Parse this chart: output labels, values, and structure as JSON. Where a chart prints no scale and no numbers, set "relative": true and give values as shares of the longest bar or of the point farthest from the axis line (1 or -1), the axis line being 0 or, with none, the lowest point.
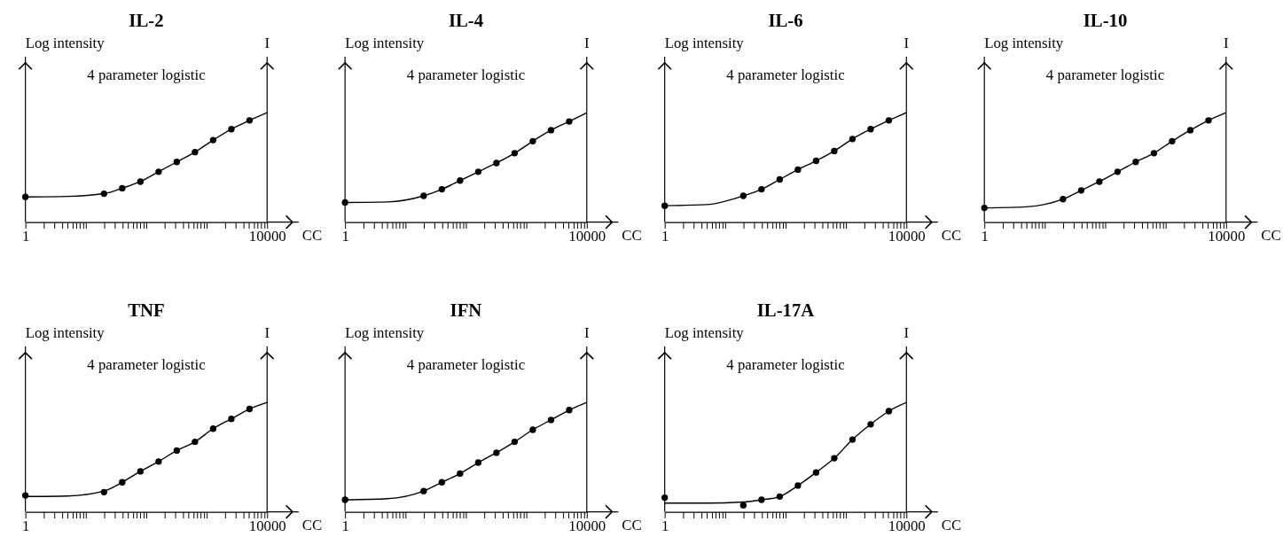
{
  "chart_data": [
    {
      "type": "scatter",
      "title": "IL-2",
      "ylabel": "Log intensity",
      "y2label": "I",
      "xlabel": "CC",
      "annotations": [
        "4 parameter logistic"
      ],
      "relative": true,
      "log": "x",
      "marker": "circle",
      "xlim": [
        1,
        10000
      ],
      "xticks": [
        1,
        {
          "value": 2,
          "label": null
        },
        {
          "value": 3,
          "label": null
        },
        {
          "value": 4,
          "label": null
        },
        {
          "value": 5,
          "label": null
        },
        {
          "value": 6,
          "label": null
        },
        {
          "value": 7,
          "label": null
        },
        {
          "value": 8,
          "label": null
        },
        {
          "value": 9,
          "label": null
        },
        {
          "value": 10,
          "label": null
        },
        {
          "value": 20,
          "label": null
        },
        {
          "value": 30,
          "label": null
        },
        {
          "value": 40,
          "label": null
        },
        {
          "value": 50,
          "label": null
        },
        {
          "value": 60,
          "label": null
        },
        {
          "value": 70,
          "label": null
        },
        {
          "value": 80,
          "label": null
        },
        {
          "value": 90,
          "label": null
        },
        {
          "value": 100,
          "label": null
        },
        {
          "value": 200,
          "label": null
        },
        {
          "value": 300,
          "label": null
        },
        {
          "value": 400,
          "label": null
        },
        {
          "value": 500,
          "label": null
        },
        {
          "value": 600,
          "label": null
        },
        {
          "value": 700,
          "label": null
        },
        {
          "value": 800,
          "label": null
        },
        {
          "value": 900,
          "label": null
        },
        {
          "value": 1000,
          "label": null
        },
        {
          "value": 2000,
          "label": null
        },
        {
          "value": 3000,
          "label": null
        },
        {
          "value": 4000,
          "label": null
        },
        {
          "value": 5000,
          "label": null
        },
        {
          "value": 6000,
          "label": null
        },
        {
          "value": 7000,
          "label": null
        },
        {
          "value": 8000,
          "label": null
        },
        {
          "value": 9000,
          "label": null
        },
        10000
      ],
      "series": [
        {
          "type": "scatter",
          "color": "#000000",
          "x": [
            1,
            20,
            40,
            80,
            160,
            320,
            640,
            1280,
            2560,
            5120
          ],
          "values": [
            0.23,
            0.26,
            0.31,
            0.37,
            0.46,
            0.55,
            0.64,
            0.75,
            0.85,
            0.93
          ]
        },
        {
          "type": "line",
          "marker": "none",
          "color": "#000000",
          "x": [
            1,
            5,
            20,
            40,
            80,
            160,
            320,
            640,
            1280,
            2560,
            5120,
            10000
          ],
          "values": [
            0.23,
            0.235,
            0.26,
            0.31,
            0.37,
            0.46,
            0.55,
            0.64,
            0.75,
            0.85,
            0.93,
            1
          ]
        }
      ]
    },
    {
      "type": "scatter",
      "title": "IL-4",
      "ylabel": "Log intensity",
      "y2label": "I",
      "xlabel": "CC",
      "annotations": [
        "4 parameter logistic"
      ],
      "relative": true,
      "log": "x",
      "marker": "circle",
      "xlim": [
        1,
        10000
      ],
      "xticks": [
        1,
        {
          "value": 2,
          "label": null
        },
        {
          "value": 3,
          "label": null
        },
        {
          "value": 4,
          "label": null
        },
        {
          "value": 5,
          "label": null
        },
        {
          "value": 6,
          "label": null
        },
        {
          "value": 7,
          "label": null
        },
        {
          "value": 8,
          "label": null
        },
        {
          "value": 9,
          "label": null
        },
        {
          "value": 10,
          "label": null
        },
        {
          "value": 20,
          "label": null
        },
        {
          "value": 30,
          "label": null
        },
        {
          "value": 40,
          "label": null
        },
        {
          "value": 50,
          "label": null
        },
        {
          "value": 60,
          "label": null
        },
        {
          "value": 70,
          "label": null
        },
        {
          "value": 80,
          "label": null
        },
        {
          "value": 90,
          "label": null
        },
        {
          "value": 100,
          "label": null
        },
        {
          "value": 200,
          "label": null
        },
        {
          "value": 300,
          "label": null
        },
        {
          "value": 400,
          "label": null
        },
        {
          "value": 500,
          "label": null
        },
        {
          "value": 600,
          "label": null
        },
        {
          "value": 700,
          "label": null
        },
        {
          "value": 800,
          "label": null
        },
        {
          "value": 900,
          "label": null
        },
        {
          "value": 1000,
          "label": null
        },
        {
          "value": 2000,
          "label": null
        },
        {
          "value": 3000,
          "label": null
        },
        {
          "value": 4000,
          "label": null
        },
        {
          "value": 5000,
          "label": null
        },
        {
          "value": 6000,
          "label": null
        },
        {
          "value": 7000,
          "label": null
        },
        {
          "value": 8000,
          "label": null
        },
        {
          "value": 9000,
          "label": null
        },
        10000
      ],
      "series": [
        {
          "type": "scatter",
          "color": "#000000",
          "x": [
            1,
            20,
            40,
            80,
            160,
            320,
            640,
            1280,
            2560,
            5120
          ],
          "values": [
            0.18,
            0.24,
            0.3,
            0.38,
            0.46,
            0.54,
            0.63,
            0.74,
            0.84,
            0.92
          ]
        },
        {
          "type": "line",
          "marker": "none",
          "color": "#000000",
          "x": [
            1,
            5,
            20,
            40,
            80,
            160,
            320,
            640,
            1280,
            2560,
            5120,
            10000
          ],
          "values": [
            0.18,
            0.185,
            0.24,
            0.3,
            0.38,
            0.46,
            0.54,
            0.63,
            0.74,
            0.84,
            0.92,
            1
          ]
        }
      ]
    },
    {
      "type": "scatter",
      "title": "IL-6",
      "ylabel": "Log intensity",
      "y2label": "I",
      "xlabel": "CC",
      "annotations": [
        "4 parameter logistic"
      ],
      "relative": true,
      "log": "x",
      "marker": "circle",
      "xlim": [
        1,
        10000
      ],
      "xticks": [
        1,
        {
          "value": 2,
          "label": null
        },
        {
          "value": 3,
          "label": null
        },
        {
          "value": 4,
          "label": null
        },
        {
          "value": 5,
          "label": null
        },
        {
          "value": 6,
          "label": null
        },
        {
          "value": 7,
          "label": null
        },
        {
          "value": 8,
          "label": null
        },
        {
          "value": 9,
          "label": null
        },
        {
          "value": 10,
          "label": null
        },
        {
          "value": 20,
          "label": null
        },
        {
          "value": 30,
          "label": null
        },
        {
          "value": 40,
          "label": null
        },
        {
          "value": 50,
          "label": null
        },
        {
          "value": 60,
          "label": null
        },
        {
          "value": 70,
          "label": null
        },
        {
          "value": 80,
          "label": null
        },
        {
          "value": 90,
          "label": null
        },
        {
          "value": 100,
          "label": null
        },
        {
          "value": 200,
          "label": null
        },
        {
          "value": 300,
          "label": null
        },
        {
          "value": 400,
          "label": null
        },
        {
          "value": 500,
          "label": null
        },
        {
          "value": 600,
          "label": null
        },
        {
          "value": 700,
          "label": null
        },
        {
          "value": 800,
          "label": null
        },
        {
          "value": 900,
          "label": null
        },
        {
          "value": 1000,
          "label": null
        },
        {
          "value": 2000,
          "label": null
        },
        {
          "value": 3000,
          "label": null
        },
        {
          "value": 4000,
          "label": null
        },
        {
          "value": 5000,
          "label": null
        },
        {
          "value": 6000,
          "label": null
        },
        {
          "value": 7000,
          "label": null
        },
        {
          "value": 8000,
          "label": null
        },
        {
          "value": 9000,
          "label": null
        },
        10000
      ],
      "series": [
        {
          "type": "scatter",
          "color": "#000000",
          "x": [
            1,
            20,
            40,
            80,
            160,
            320,
            640,
            1280,
            2560,
            5120
          ],
          "values": [
            0.15,
            0.24,
            0.3,
            0.39,
            0.48,
            0.56,
            0.65,
            0.76,
            0.85,
            0.93
          ]
        },
        {
          "type": "line",
          "marker": "none",
          "color": "#000000",
          "x": [
            1,
            5,
            20,
            40,
            80,
            160,
            320,
            640,
            1280,
            2560,
            5120,
            10000
          ],
          "values": [
            0.15,
            0.16,
            0.24,
            0.3,
            0.39,
            0.48,
            0.56,
            0.65,
            0.76,
            0.85,
            0.93,
            1
          ]
        }
      ]
    },
    {
      "type": "scatter",
      "title": "IL-10",
      "ylabel": "Log intensity",
      "y2label": "I",
      "xlabel": "CC",
      "annotations": [
        "4 parameter logistic"
      ],
      "relative": true,
      "log": "x",
      "marker": "circle",
      "xlim": [
        1,
        10000
      ],
      "xticks": [
        1,
        {
          "value": 2,
          "label": null
        },
        {
          "value": 3,
          "label": null
        },
        {
          "value": 4,
          "label": null
        },
        {
          "value": 5,
          "label": null
        },
        {
          "value": 6,
          "label": null
        },
        {
          "value": 7,
          "label": null
        },
        {
          "value": 8,
          "label": null
        },
        {
          "value": 9,
          "label": null
        },
        {
          "value": 10,
          "label": null
        },
        {
          "value": 20,
          "label": null
        },
        {
          "value": 30,
          "label": null
        },
        {
          "value": 40,
          "label": null
        },
        {
          "value": 50,
          "label": null
        },
        {
          "value": 60,
          "label": null
        },
        {
          "value": 70,
          "label": null
        },
        {
          "value": 80,
          "label": null
        },
        {
          "value": 90,
          "label": null
        },
        {
          "value": 100,
          "label": null
        },
        {
          "value": 200,
          "label": null
        },
        {
          "value": 300,
          "label": null
        },
        {
          "value": 400,
          "label": null
        },
        {
          "value": 500,
          "label": null
        },
        {
          "value": 600,
          "label": null
        },
        {
          "value": 700,
          "label": null
        },
        {
          "value": 800,
          "label": null
        },
        {
          "value": 900,
          "label": null
        },
        {
          "value": 1000,
          "label": null
        },
        {
          "value": 2000,
          "label": null
        },
        {
          "value": 3000,
          "label": null
        },
        {
          "value": 4000,
          "label": null
        },
        {
          "value": 5000,
          "label": null
        },
        {
          "value": 6000,
          "label": null
        },
        {
          "value": 7000,
          "label": null
        },
        {
          "value": 8000,
          "label": null
        },
        {
          "value": 9000,
          "label": null
        },
        10000
      ],
      "series": [
        {
          "type": "scatter",
          "color": "#000000",
          "x": [
            1,
            20,
            40,
            80,
            160,
            320,
            640,
            1280,
            2560,
            5120
          ],
          "values": [
            0.13,
            0.21,
            0.29,
            0.37,
            0.46,
            0.55,
            0.63,
            0.74,
            0.84,
            0.93
          ]
        },
        {
          "type": "line",
          "marker": "none",
          "color": "#000000",
          "x": [
            1,
            5,
            20,
            40,
            80,
            160,
            320,
            640,
            1280,
            2560,
            5120,
            10000
          ],
          "values": [
            0.13,
            0.14,
            0.21,
            0.29,
            0.37,
            0.46,
            0.55,
            0.63,
            0.74,
            0.84,
            0.93,
            1
          ]
        }
      ]
    },
    {
      "type": "scatter",
      "title": "TNF",
      "ylabel": "Log intensity",
      "y2label": "I",
      "xlabel": "CC",
      "annotations": [
        "4 parameter logistic"
      ],
      "relative": true,
      "log": "x",
      "marker": "circle",
      "xlim": [
        1,
        10000
      ],
      "xticks": [
        1,
        {
          "value": 2,
          "label": null
        },
        {
          "value": 3,
          "label": null
        },
        {
          "value": 4,
          "label": null
        },
        {
          "value": 5,
          "label": null
        },
        {
          "value": 6,
          "label": null
        },
        {
          "value": 7,
          "label": null
        },
        {
          "value": 8,
          "label": null
        },
        {
          "value": 9,
          "label": null
        },
        {
          "value": 10,
          "label": null
        },
        {
          "value": 20,
          "label": null
        },
        {
          "value": 30,
          "label": null
        },
        {
          "value": 40,
          "label": null
        },
        {
          "value": 50,
          "label": null
        },
        {
          "value": 60,
          "label": null
        },
        {
          "value": 70,
          "label": null
        },
        {
          "value": 80,
          "label": null
        },
        {
          "value": 90,
          "label": null
        },
        {
          "value": 100,
          "label": null
        },
        {
          "value": 200,
          "label": null
        },
        {
          "value": 300,
          "label": null
        },
        {
          "value": 400,
          "label": null
        },
        {
          "value": 500,
          "label": null
        },
        {
          "value": 600,
          "label": null
        },
        {
          "value": 700,
          "label": null
        },
        {
          "value": 800,
          "label": null
        },
        {
          "value": 900,
          "label": null
        },
        {
          "value": 1000,
          "label": null
        },
        {
          "value": 2000,
          "label": null
        },
        {
          "value": 3000,
          "label": null
        },
        {
          "value": 4000,
          "label": null
        },
        {
          "value": 5000,
          "label": null
        },
        {
          "value": 6000,
          "label": null
        },
        {
          "value": 7000,
          "label": null
        },
        {
          "value": 8000,
          "label": null
        },
        {
          "value": 9000,
          "label": null
        },
        10000
      ],
      "series": [
        {
          "type": "scatter",
          "color": "#000000",
          "x": [
            1,
            20,
            40,
            80,
            160,
            320,
            640,
            1280,
            2560,
            5120
          ],
          "values": [
            0.15,
            0.18,
            0.27,
            0.37,
            0.46,
            0.56,
            0.64,
            0.76,
            0.85,
            0.94
          ]
        },
        {
          "type": "line",
          "marker": "none",
          "color": "#000000",
          "x": [
            1,
            5,
            20,
            40,
            80,
            160,
            320,
            640,
            1280,
            2560,
            5120,
            10000
          ],
          "values": [
            0.14,
            0.145,
            0.19,
            0.27,
            0.37,
            0.46,
            0.56,
            0.64,
            0.76,
            0.85,
            0.94,
            1
          ]
        }
      ]
    },
    {
      "type": "scatter",
      "title": "IFN",
      "ylabel": "Log intensity",
      "y2label": "I",
      "xlabel": "CC",
      "annotations": [
        "4 parameter logistic"
      ],
      "relative": true,
      "log": "x",
      "marker": "circle",
      "xlim": [
        1,
        10000
      ],
      "xticks": [
        1,
        {
          "value": 2,
          "label": null
        },
        {
          "value": 3,
          "label": null
        },
        {
          "value": 4,
          "label": null
        },
        {
          "value": 5,
          "label": null
        },
        {
          "value": 6,
          "label": null
        },
        {
          "value": 7,
          "label": null
        },
        {
          "value": 8,
          "label": null
        },
        {
          "value": 9,
          "label": null
        },
        {
          "value": 10,
          "label": null
        },
        {
          "value": 20,
          "label": null
        },
        {
          "value": 30,
          "label": null
        },
        {
          "value": 40,
          "label": null
        },
        {
          "value": 50,
          "label": null
        },
        {
          "value": 60,
          "label": null
        },
        {
          "value": 70,
          "label": null
        },
        {
          "value": 80,
          "label": null
        },
        {
          "value": 90,
          "label": null
        },
        {
          "value": 100,
          "label": null
        },
        {
          "value": 200,
          "label": null
        },
        {
          "value": 300,
          "label": null
        },
        {
          "value": 400,
          "label": null
        },
        {
          "value": 500,
          "label": null
        },
        {
          "value": 600,
          "label": null
        },
        {
          "value": 700,
          "label": null
        },
        {
          "value": 800,
          "label": null
        },
        {
          "value": 900,
          "label": null
        },
        {
          "value": 1000,
          "label": null
        },
        {
          "value": 2000,
          "label": null
        },
        {
          "value": 3000,
          "label": null
        },
        {
          "value": 4000,
          "label": null
        },
        {
          "value": 5000,
          "label": null
        },
        {
          "value": 6000,
          "label": null
        },
        {
          "value": 7000,
          "label": null
        },
        {
          "value": 8000,
          "label": null
        },
        {
          "value": 9000,
          "label": null
        },
        10000
      ],
      "series": [
        {
          "type": "scatter",
          "color": "#000000",
          "x": [
            1,
            20,
            40,
            80,
            160,
            320,
            640,
            1280,
            2560,
            5120
          ],
          "values": [
            0.11,
            0.19,
            0.27,
            0.35,
            0.45,
            0.54,
            0.64,
            0.75,
            0.84,
            0.93
          ]
        },
        {
          "type": "line",
          "marker": "none",
          "color": "#000000",
          "x": [
            1,
            5,
            20,
            40,
            80,
            160,
            320,
            640,
            1280,
            2560,
            5120,
            10000
          ],
          "values": [
            0.11,
            0.12,
            0.19,
            0.27,
            0.35,
            0.45,
            0.54,
            0.64,
            0.75,
            0.84,
            0.93,
            1
          ]
        }
      ]
    },
    {
      "type": "scatter",
      "title": "IL-17A",
      "ylabel": "Log intensity",
      "y2label": "I",
      "xlabel": "CC",
      "annotations": [
        "4 parameter logistic"
      ],
      "relative": true,
      "log": "x",
      "marker": "circle",
      "xlim": [
        1,
        10000
      ],
      "xticks": [
        1,
        {
          "value": 2,
          "label": null
        },
        {
          "value": 3,
          "label": null
        },
        {
          "value": 4,
          "label": null
        },
        {
          "value": 5,
          "label": null
        },
        {
          "value": 6,
          "label": null
        },
        {
          "value": 7,
          "label": null
        },
        {
          "value": 8,
          "label": null
        },
        {
          "value": 9,
          "label": null
        },
        {
          "value": 10,
          "label": null
        },
        {
          "value": 20,
          "label": null
        },
        {
          "value": 30,
          "label": null
        },
        {
          "value": 40,
          "label": null
        },
        {
          "value": 50,
          "label": null
        },
        {
          "value": 60,
          "label": null
        },
        {
          "value": 70,
          "label": null
        },
        {
          "value": 80,
          "label": null
        },
        {
          "value": 90,
          "label": null
        },
        {
          "value": 100,
          "label": null
        },
        {
          "value": 200,
          "label": null
        },
        {
          "value": 300,
          "label": null
        },
        {
          "value": 400,
          "label": null
        },
        {
          "value": 500,
          "label": null
        },
        {
          "value": 600,
          "label": null
        },
        {
          "value": 700,
          "label": null
        },
        {
          "value": 800,
          "label": null
        },
        {
          "value": 900,
          "label": null
        },
        {
          "value": 1000,
          "label": null
        },
        {
          "value": 2000,
          "label": null
        },
        {
          "value": 3000,
          "label": null
        },
        {
          "value": 4000,
          "label": null
        },
        {
          "value": 5000,
          "label": null
        },
        {
          "value": 6000,
          "label": null
        },
        {
          "value": 7000,
          "label": null
        },
        {
          "value": 8000,
          "label": null
        },
        {
          "value": 9000,
          "label": null
        },
        10000
      ],
      "series": [
        {
          "type": "scatter",
          "color": "#000000",
          "x": [
            1,
            20,
            40,
            80,
            160,
            320,
            640,
            1280,
            2560,
            5120
          ],
          "values": [
            0.13,
            0.06,
            0.11,
            0.14,
            0.24,
            0.36,
            0.49,
            0.66,
            0.8,
            0.92
          ]
        },
        {
          "type": "line",
          "marker": "none",
          "color": "#000000",
          "x": [
            1,
            5,
            20,
            40,
            80,
            160,
            320,
            640,
            1280,
            2560,
            5120,
            10000
          ],
          "values": [
            0.08,
            0.08,
            0.09,
            0.11,
            0.14,
            0.24,
            0.36,
            0.49,
            0.66,
            0.8,
            0.92,
            1
          ]
        }
      ]
    }
  ]
}
